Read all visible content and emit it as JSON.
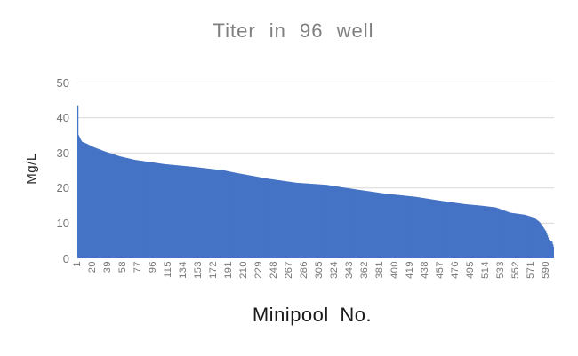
{
  "chart_data": {
    "type": "bar",
    "title": "Titer in 96 well",
    "xlabel": "Minipool No.",
    "ylabel": "Mg/L",
    "ylim": [
      0,
      50
    ],
    "y_ticks": [
      0,
      10,
      20,
      30,
      40,
      50
    ],
    "x_tick_labels": [
      "1",
      "20",
      "39",
      "58",
      "77",
      "96",
      "115",
      "134",
      "153",
      "172",
      "191",
      "210",
      "229",
      "248",
      "267",
      "286",
      "305",
      "324",
      "343",
      "362",
      "381",
      "400",
      "419",
      "438",
      "457",
      "476",
      "495",
      "514",
      "533",
      "552",
      "571",
      "590"
    ],
    "x_tick_step": 19,
    "n_points": 600,
    "sort_order": "descending",
    "envelope_points": [
      [
        1,
        43.5
      ],
      [
        2,
        35.0
      ],
      [
        4,
        34.0
      ],
      [
        6,
        33.2
      ],
      [
        12,
        32.6
      ],
      [
        21,
        31.6
      ],
      [
        35,
        30.4
      ],
      [
        54,
        29.0
      ],
      [
        73,
        28.0
      ],
      [
        110,
        26.8
      ],
      [
        147,
        26.0
      ],
      [
        185,
        25.0
      ],
      [
        200,
        24.3
      ],
      [
        239,
        22.7
      ],
      [
        276,
        21.5
      ],
      [
        314,
        20.9
      ],
      [
        351,
        19.6
      ],
      [
        388,
        18.4
      ],
      [
        426,
        17.5
      ],
      [
        463,
        16.2
      ],
      [
        489,
        15.4
      ],
      [
        508,
        15.0
      ],
      [
        527,
        14.5
      ],
      [
        545,
        13.0
      ],
      [
        564,
        12.4
      ],
      [
        575,
        11.6
      ],
      [
        582,
        10.4
      ],
      [
        586,
        9.1
      ],
      [
        590,
        7.8
      ],
      [
        592,
        6.6
      ],
      [
        594,
        5.3
      ],
      [
        598,
        4.7
      ],
      [
        600,
        3.3
      ]
    ],
    "bar_color": "#4472c4",
    "gridline_color": "#d9d9d9",
    "axis_text_color": "#757575",
    "title_color": "#7f7f7f",
    "grid": true,
    "legend": false
  }
}
